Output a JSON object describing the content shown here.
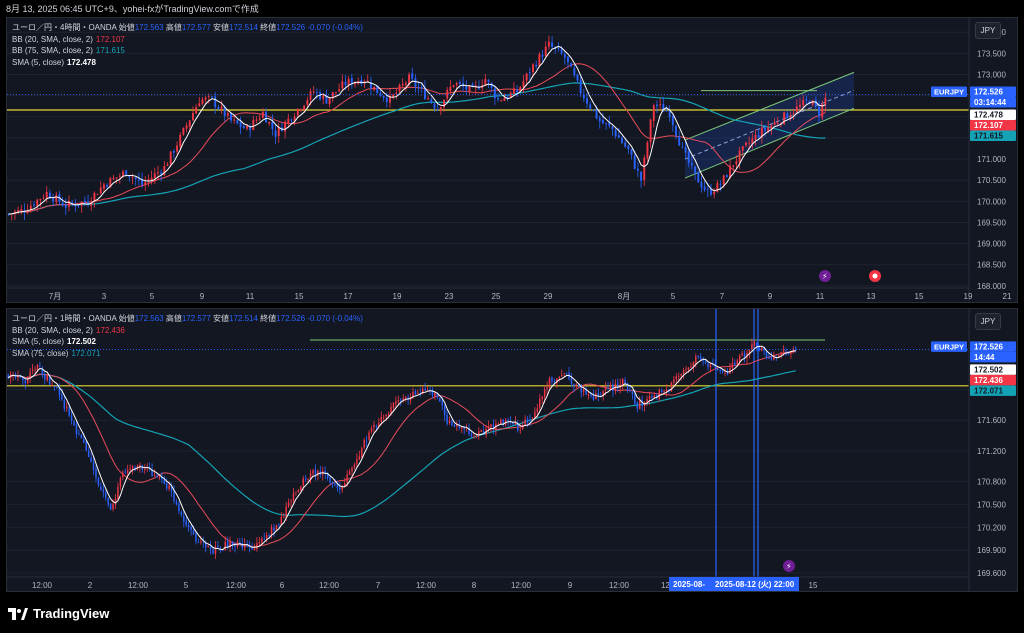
{
  "screenshot_caption": "8月 13, 2025 06:45 UTC+9、yohei-fxがTradingView.comで作成",
  "brand": "TradingView",
  "currency": "JPY",
  "colors": {
    "up": "#f23645",
    "down": "#2962ff",
    "bb": "#e84c5a",
    "sma5": "#ffffff",
    "sma75": "#14a3b5",
    "hline": "#e8d832",
    "channel": "#7ec97a"
  },
  "chart_data": [
    {
      "type": "candlestick",
      "pane": "upper",
      "legend": {
        "symbol": "ユーロ／円・4時間・OANDA",
        "o_label": "始値",
        "o": "172.563",
        "h_label": "高値",
        "h": "172.577",
        "l_label": "安値",
        "l": "172.514",
        "c_label": "終値",
        "c": "172.526",
        "chg": "-0.070 (-0.04%)",
        "indicators": [
          {
            "label": "BB (20, SMA, close, 2)",
            "value": "172.107",
            "color": "#f23645"
          },
          {
            "label": "BB (75, SMA, close, 2)",
            "value": "171.615",
            "color": "#14a3b5"
          },
          {
            "label": "SMA (5, close)",
            "value": "172.478",
            "color": "#ffffff"
          }
        ]
      },
      "y_ticks": [
        "174.000",
        "173.500",
        "173.000",
        "172.500",
        "172.000",
        "171.500",
        "171.000",
        "170.500",
        "170.000",
        "169.500",
        "169.000",
        "168.500",
        "168.000"
      ],
      "ylim": [
        167.95,
        174.1
      ],
      "x_ticks": [
        "7月",
        "3",
        "5",
        "9",
        "11",
        "15",
        "17",
        "19",
        "23",
        "25",
        "29",
        "8月",
        "5",
        "7",
        "9",
        "11",
        "13",
        "15",
        "19",
        "21"
      ],
      "price_labels": [
        {
          "text": "EURJPY",
          "value": 172.526,
          "color": "#2962ff"
        },
        {
          "text": "172.526",
          "value": 172.526,
          "color": "#2962ff"
        },
        {
          "text": "03:14:44",
          "value": 172.526,
          "color": "#2962ff"
        },
        {
          "text": "172.478",
          "value": 172.478,
          "color": "#ffffff"
        },
        {
          "text": "172.107",
          "value": 172.107,
          "color": "#f23645"
        },
        {
          "text": "171.615",
          "value": 171.615,
          "color": "#14a3b5"
        }
      ],
      "horizontal_line": 172.16,
      "path": [
        [
          0,
          169.7
        ],
        [
          5,
          169.8
        ],
        [
          12,
          170.2
        ],
        [
          18,
          169.9
        ],
        [
          25,
          170.0
        ],
        [
          30,
          170.4
        ],
        [
          37,
          170.7
        ],
        [
          42,
          170.4
        ],
        [
          49,
          170.8
        ],
        [
          54,
          171.5
        ],
        [
          60,
          172.4
        ],
        [
          64,
          172.4
        ],
        [
          70,
          171.9
        ],
        [
          75,
          171.7
        ],
        [
          80,
          172.1
        ],
        [
          84,
          171.6
        ],
        [
          90,
          172.1
        ],
        [
          96,
          172.6
        ],
        [
          100,
          172.4
        ],
        [
          106,
          172.8
        ],
        [
          112,
          172.9
        ],
        [
          116,
          172.6
        ],
        [
          120,
          172.4
        ],
        [
          126,
          172.9
        ],
        [
          130,
          172.6
        ],
        [
          135,
          172.2
        ],
        [
          140,
          172.8
        ],
        [
          146,
          172.6
        ],
        [
          150,
          172.9
        ],
        [
          154,
          172.4
        ],
        [
          160,
          172.6
        ],
        [
          165,
          173.2
        ],
        [
          170,
          173.7
        ],
        [
          175,
          173.4
        ],
        [
          180,
          172.6
        ],
        [
          186,
          171.9
        ],
        [
          190,
          171.7
        ],
        [
          195,
          171.2
        ],
        [
          199,
          170.5
        ],
        [
          203,
          172.3
        ],
        [
          208,
          172.1
        ],
        [
          212,
          171.2
        ],
        [
          216,
          170.6
        ],
        [
          220,
          170.2
        ],
        [
          224,
          170.4
        ],
        [
          228,
          170.9
        ],
        [
          232,
          171.3
        ],
        [
          236,
          171.6
        ],
        [
          240,
          171.8
        ],
        [
          244,
          172.0
        ],
        [
          248,
          172.2
        ],
        [
          252,
          172.4
        ],
        [
          255,
          172.1
        ],
        [
          258,
          172.6
        ]
      ],
      "candle_count": 258,
      "ohlc": "generated_from_path"
    },
    {
      "type": "candlestick",
      "pane": "lower",
      "legend": {
        "symbol": "ユーロ／円・1時間・OANDA",
        "o_label": "始値",
        "o": "172.563",
        "h_label": "高値",
        "h": "172.577",
        "l_label": "安値",
        "l": "172.514",
        "c_label": "終値",
        "c": "172.526",
        "chg": "-0.070 (-0.04%)",
        "indicators": [
          {
            "label": "BB (20, SMA, close, 2)",
            "value": "172.436",
            "color": "#f23645"
          },
          {
            "label": "SMA (5, close)",
            "value": "172.502",
            "color": "#ffffff"
          },
          {
            "label": "SMA (75, close)",
            "value": "172.071",
            "color": "#14a3b5"
          }
        ]
      },
      "y_ticks": [
        "172.000",
        "171.600",
        "171.200",
        "170.800",
        "170.500",
        "170.200",
        "169.900",
        "169.600"
      ],
      "ylim": [
        169.55,
        172.95
      ],
      "x_ticks": [
        "12:00",
        "2",
        "12:00",
        "5",
        "12:00",
        "6",
        "12:00",
        "7",
        "12:00",
        "8",
        "12:00",
        "9",
        "12:00",
        "12:00",
        "14",
        "12:00",
        "15"
      ],
      "date_badge": "2025-08-12 (火)  22:00",
      "date_badge_left": "2025-08-",
      "price_labels": [
        {
          "text": "EURJPY",
          "value": 172.526,
          "color": "#2962ff"
        },
        {
          "text": "172.526",
          "value": 172.526,
          "color": "#2962ff"
        },
        {
          "text": "14:44",
          "value": 172.526,
          "color": "#2962ff"
        },
        {
          "text": "172.502",
          "value": 172.502,
          "color": "#ffffff"
        },
        {
          "text": "172.436",
          "value": 172.436,
          "color": "#f23645"
        },
        {
          "text": "172.071",
          "value": 172.071,
          "color": "#14a3b5"
        }
      ],
      "horizontal_line": 172.05,
      "path": [
        [
          0,
          172.2
        ],
        [
          6,
          172.1
        ],
        [
          12,
          172.3
        ],
        [
          20,
          172.0
        ],
        [
          26,
          171.6
        ],
        [
          32,
          171.2
        ],
        [
          38,
          170.7
        ],
        [
          42,
          170.4
        ],
        [
          47,
          170.9
        ],
        [
          52,
          171.0
        ],
        [
          60,
          170.9
        ],
        [
          66,
          170.7
        ],
        [
          72,
          170.3
        ],
        [
          78,
          170.0
        ],
        [
          84,
          169.9
        ],
        [
          92,
          170.0
        ],
        [
          100,
          169.9
        ],
        [
          106,
          170.1
        ],
        [
          112,
          170.3
        ],
        [
          118,
          170.7
        ],
        [
          124,
          170.9
        ],
        [
          130,
          170.9
        ],
        [
          136,
          170.7
        ],
        [
          140,
          170.9
        ],
        [
          146,
          171.3
        ],
        [
          152,
          171.6
        ],
        [
          158,
          171.8
        ],
        [
          164,
          171.9
        ],
        [
          170,
          172.0
        ],
        [
          176,
          171.9
        ],
        [
          180,
          171.6
        ],
        [
          186,
          171.5
        ],
        [
          192,
          171.4
        ],
        [
          198,
          171.5
        ],
        [
          204,
          171.6
        ],
        [
          210,
          171.5
        ],
        [
          216,
          171.7
        ],
        [
          222,
          172.1
        ],
        [
          228,
          172.2
        ],
        [
          234,
          172.0
        ],
        [
          240,
          171.9
        ],
        [
          246,
          172.0
        ],
        [
          252,
          172.1
        ],
        [
          258,
          171.8
        ],
        [
          264,
          171.9
        ],
        [
          270,
          172.0
        ],
        [
          276,
          172.2
        ],
        [
          282,
          172.4
        ],
        [
          288,
          172.3
        ],
        [
          294,
          172.2
        ],
        [
          300,
          172.4
        ],
        [
          306,
          172.6
        ],
        [
          312,
          172.4
        ],
        [
          318,
          172.5
        ],
        [
          324,
          172.5
        ]
      ],
      "candle_count": 324,
      "ohlc": "generated_from_path"
    }
  ]
}
